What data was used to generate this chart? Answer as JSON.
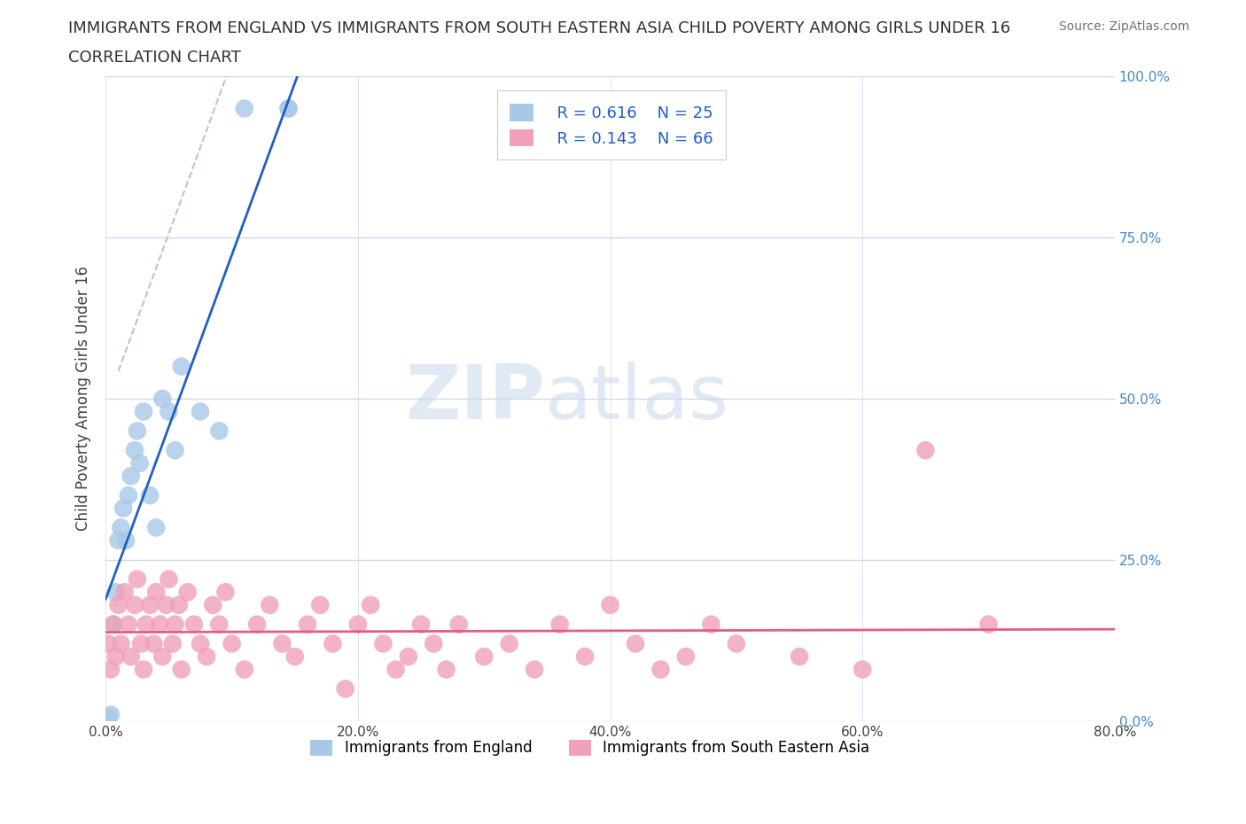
{
  "title_line1": "IMMIGRANTS FROM ENGLAND VS IMMIGRANTS FROM SOUTH EASTERN ASIA CHILD POVERTY AMONG GIRLS UNDER 16",
  "title_line2": "CORRELATION CHART",
  "source": "Source: ZipAtlas.com",
  "ylabel": "Child Poverty Among Girls Under 16",
  "xlim": [
    0.0,
    80.0
  ],
  "ylim": [
    0.0,
    100.0
  ],
  "xticks": [
    0.0,
    20.0,
    40.0,
    60.0,
    80.0
  ],
  "yticks": [
    0.0,
    25.0,
    50.0,
    75.0,
    100.0
  ],
  "right_ytick_labels": [
    "0.0%",
    "25.0%",
    "50.0%",
    "75.0%",
    "100.0%"
  ],
  "series": [
    {
      "name": "Immigrants from England",
      "color": "#a8c8e8",
      "line_color": "#2060c0",
      "R": 0.616,
      "N": 25,
      "x": [
        0.2,
        0.4,
        0.6,
        0.8,
        1.0,
        1.2,
        1.4,
        1.6,
        1.8,
        2.0,
        2.3,
        2.5,
        2.7,
        3.0,
        3.5,
        4.0,
        4.5,
        5.0,
        5.5,
        6.0,
        7.5,
        9.0,
        11.0,
        14.5,
        14.5
      ],
      "y": [
        0.5,
        1.0,
        15.0,
        20.0,
        28.0,
        30.0,
        33.0,
        28.0,
        35.0,
        38.0,
        42.0,
        45.0,
        40.0,
        48.0,
        35.0,
        30.0,
        50.0,
        48.0,
        42.0,
        55.0,
        48.0,
        45.0,
        95.0,
        95.0,
        95.0
      ]
    },
    {
      "name": "Immigrants from South Eastern Asia",
      "color": "#f0a0b8",
      "line_color": "#e06080",
      "R": 0.143,
      "N": 66,
      "x": [
        0.2,
        0.4,
        0.6,
        0.8,
        1.0,
        1.2,
        1.5,
        1.8,
        2.0,
        2.3,
        2.5,
        2.8,
        3.0,
        3.2,
        3.5,
        3.8,
        4.0,
        4.3,
        4.5,
        4.8,
        5.0,
        5.3,
        5.5,
        5.8,
        6.0,
        6.5,
        7.0,
        7.5,
        8.0,
        8.5,
        9.0,
        9.5,
        10.0,
        11.0,
        12.0,
        13.0,
        14.0,
        15.0,
        16.0,
        17.0,
        18.0,
        19.0,
        20.0,
        21.0,
        22.0,
        23.0,
        24.0,
        25.0,
        26.0,
        27.0,
        28.0,
        30.0,
        32.0,
        34.0,
        36.0,
        38.0,
        40.0,
        42.0,
        44.0,
        46.0,
        48.0,
        50.0,
        55.0,
        60.0,
        65.0,
        70.0
      ],
      "y": [
        12.0,
        8.0,
        15.0,
        10.0,
        18.0,
        12.0,
        20.0,
        15.0,
        10.0,
        18.0,
        22.0,
        12.0,
        8.0,
        15.0,
        18.0,
        12.0,
        20.0,
        15.0,
        10.0,
        18.0,
        22.0,
        12.0,
        15.0,
        18.0,
        8.0,
        20.0,
        15.0,
        12.0,
        10.0,
        18.0,
        15.0,
        20.0,
        12.0,
        8.0,
        15.0,
        18.0,
        12.0,
        10.0,
        15.0,
        18.0,
        12.0,
        5.0,
        15.0,
        18.0,
        12.0,
        8.0,
        10.0,
        15.0,
        12.0,
        8.0,
        15.0,
        10.0,
        12.0,
        8.0,
        15.0,
        10.0,
        18.0,
        12.0,
        8.0,
        10.0,
        15.0,
        12.0,
        10.0,
        8.0,
        42.0,
        15.0
      ]
    }
  ],
  "legend_R_color": "#2060c0",
  "background_color": "#ffffff",
  "grid_color": "#d0d8ec",
  "title_color": "#303030",
  "axis_label_color": "#404040",
  "right_axis_color": "#4488cc",
  "watermark_color": "#c8d8ec",
  "watermark_alpha": 0.55
}
